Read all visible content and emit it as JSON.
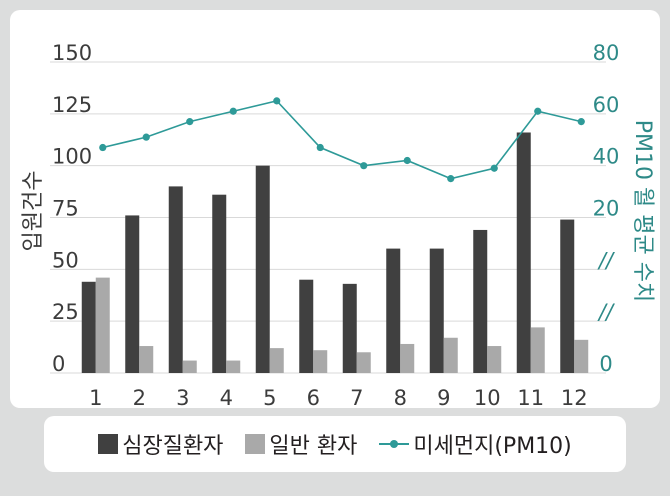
{
  "chart_data": {
    "type": "bar",
    "categories": [
      "1",
      "2",
      "3",
      "4",
      "5",
      "6",
      "7",
      "8",
      "9",
      "10",
      "11",
      "12"
    ],
    "series": [
      {
        "name": "심장질환자",
        "type": "bar",
        "color": "#404040",
        "values": [
          44,
          76,
          90,
          86,
          100,
          45,
          43,
          60,
          60,
          69,
          116,
          74
        ]
      },
      {
        "name": "일반 환자",
        "type": "bar",
        "color": "#a9a9a9",
        "values": [
          46,
          13,
          6,
          6,
          12,
          11,
          10,
          14,
          17,
          13,
          22,
          16
        ]
      },
      {
        "name": "미세먼지(PM10)",
        "type": "line",
        "axis": "right",
        "color": "#2e9a98",
        "values": [
          47,
          51,
          57,
          61,
          65,
          47,
          40,
          42,
          35,
          39,
          61,
          57
        ]
      }
    ],
    "ylabel": "입원건수",
    "ylabel_right": "PM10 월 평균 수치",
    "yticks": [
      "0",
      "25",
      "50",
      "75",
      "100",
      "125",
      "150"
    ],
    "ylim": [
      0,
      150
    ],
    "yticks_right": [
      "0",
      "//",
      "//",
      "20",
      "40",
      "60",
      "80"
    ],
    "ylim_right_top": [
      20,
      80
    ],
    "grid": true,
    "legend": "bottom"
  },
  "legend": {
    "items": [
      "심장질환자",
      "일반 환자",
      "미세먼지(PM10)"
    ]
  }
}
